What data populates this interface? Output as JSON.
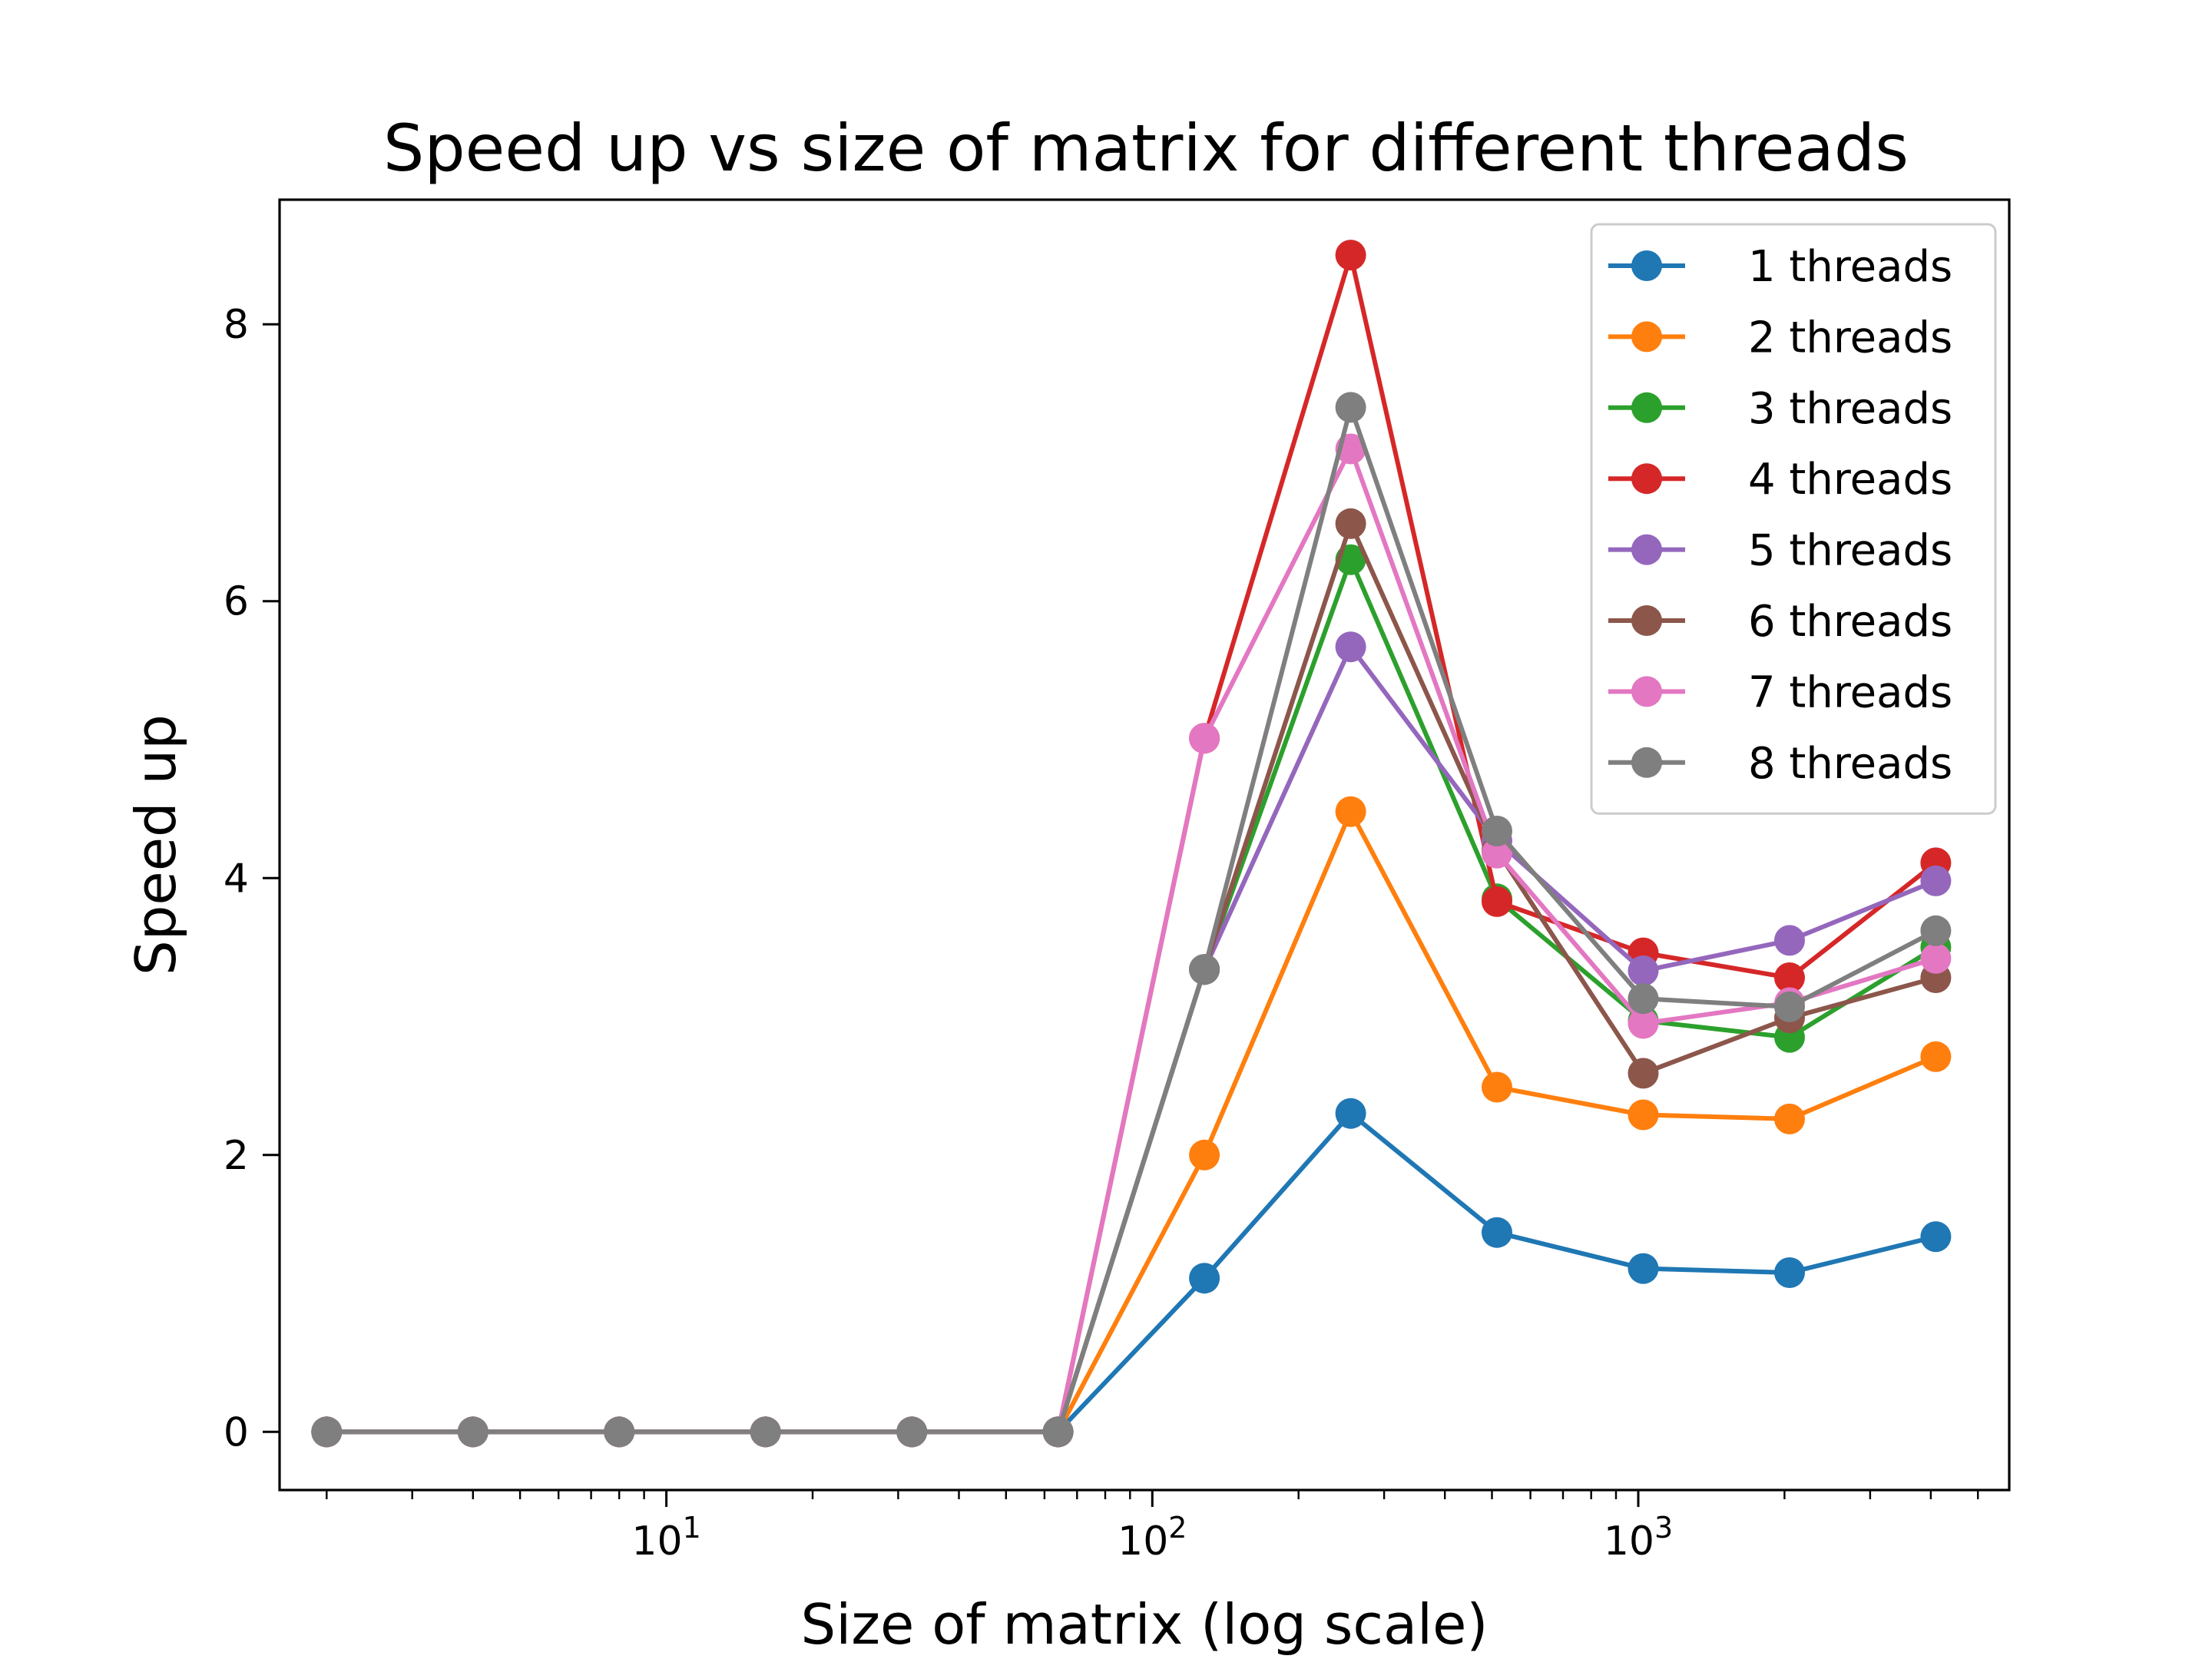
{
  "chart_data": {
    "type": "line",
    "title": "Speed up vs size of matrix for different threads",
    "xlabel": "Size of matrix (log scale)",
    "ylabel": "Speed up",
    "xscale": "log",
    "xlim": [
      1.6,
      5800
    ],
    "ylim": [
      -0.42,
      8.9
    ],
    "grid": false,
    "legend_position": "top-right",
    "x": [
      2,
      4,
      8,
      16,
      32,
      64,
      128,
      256,
      512,
      1024,
      2048,
      4096
    ],
    "yticks": [
      {
        "value": 0,
        "label": "0"
      },
      {
        "value": 2,
        "label": "2"
      },
      {
        "value": 4,
        "label": "4"
      },
      {
        "value": 6,
        "label": "6"
      },
      {
        "value": 8,
        "label": "8"
      }
    ],
    "xticks": [
      {
        "value": 10,
        "base": "10",
        "exp": "1"
      },
      {
        "value": 100,
        "base": "10",
        "exp": "2"
      },
      {
        "value": 1000,
        "base": "10",
        "exp": "3"
      }
    ],
    "series": [
      {
        "name": "1 threads",
        "color": "#1f77b4",
        "values": [
          0,
          0,
          0,
          0,
          0,
          0,
          1.11,
          2.3,
          1.44,
          1.18,
          1.15,
          1.41
        ]
      },
      {
        "name": "2 threads",
        "color": "#ff7f0e",
        "values": [
          0,
          0,
          0,
          0,
          0,
          0,
          2.0,
          4.48,
          2.49,
          2.29,
          2.26,
          2.71
        ]
      },
      {
        "name": "3 threads",
        "color": "#2ca02c",
        "values": [
          0,
          0,
          0,
          0,
          0,
          0,
          3.34,
          6.3,
          3.85,
          2.97,
          2.85,
          3.5
        ]
      },
      {
        "name": "4 threads",
        "color": "#d62728",
        "values": [
          0,
          0,
          0,
          0,
          0,
          0,
          5.01,
          8.5,
          3.83,
          3.46,
          3.28,
          4.11
        ]
      },
      {
        "name": "5 threads",
        "color": "#9467bd",
        "values": [
          0,
          0,
          0,
          0,
          0,
          0,
          3.34,
          5.67,
          4.27,
          3.33,
          3.55,
          3.98
        ]
      },
      {
        "name": "6 threads",
        "color": "#8c564b",
        "values": [
          0,
          0,
          0,
          0,
          0,
          0,
          3.34,
          6.56,
          4.2,
          2.59,
          2.99,
          3.28
        ]
      },
      {
        "name": "7 threads",
        "color": "#e377c2",
        "values": [
          0,
          0,
          0,
          0,
          0,
          0,
          5.01,
          7.1,
          4.18,
          2.95,
          3.1,
          3.42
        ]
      },
      {
        "name": "8 threads",
        "color": "#7f7f7f",
        "values": [
          0,
          0,
          0,
          0,
          0,
          0,
          3.34,
          7.4,
          4.34,
          3.13,
          3.07,
          3.62
        ]
      }
    ]
  }
}
